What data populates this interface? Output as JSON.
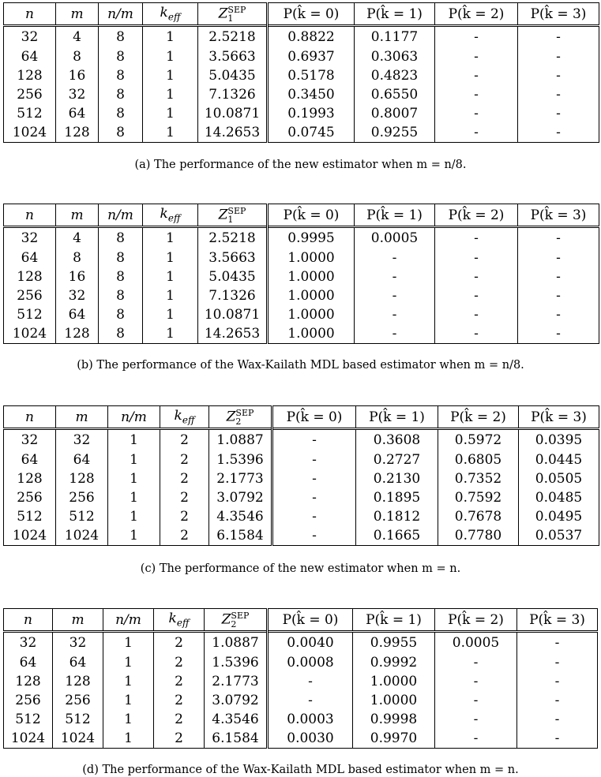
{
  "headers": [
    "n",
    "m",
    "n/m",
    "k_eff",
    "Z_SEP",
    "P(k=0)",
    "P(k=1)",
    "P(k=2)",
    "P(k=3)"
  ],
  "header_display": {
    "n": "n",
    "m": "m",
    "nm": "n/m",
    "keff": "k",
    "keff_sub": "eff",
    "z": "Z",
    "z_sup": "SEP",
    "p0": "P(k̂ = 0)",
    "p1": "P(k̂ = 1)",
    "p2": "P(k̂ = 2)",
    "p3": "P(k̂ = 3)"
  },
  "tables": [
    {
      "z_sub": "1",
      "caption": "(a)  The performance of the new estimator when m = n/8.",
      "rows": [
        [
          "32",
          "4",
          "8",
          "1",
          "2.5218",
          "0.8822",
          "0.1177",
          "-",
          "-"
        ],
        [
          "64",
          "8",
          "8",
          "1",
          "3.5663",
          "0.6937",
          "0.3063",
          "-",
          "-"
        ],
        [
          "128",
          "16",
          "8",
          "1",
          "5.0435",
          "0.5178",
          "0.4823",
          "-",
          "-"
        ],
        [
          "256",
          "32",
          "8",
          "1",
          "7.1326",
          "0.3450",
          "0.6550",
          "-",
          "-"
        ],
        [
          "512",
          "64",
          "8",
          "1",
          "10.0871",
          "0.1993",
          "0.8007",
          "-",
          "-"
        ],
        [
          "1024",
          "128",
          "8",
          "1",
          "14.2653",
          "0.0745",
          "0.9255",
          "-",
          "-"
        ]
      ]
    },
    {
      "z_sub": "1",
      "caption": "(b)  The performance of the Wax-Kailath MDL based estimator when m = n/8.",
      "rows": [
        [
          "32",
          "4",
          "8",
          "1",
          "2.5218",
          "0.9995",
          "0.0005",
          "-",
          "-"
        ],
        [
          "64",
          "8",
          "8",
          "1",
          "3.5663",
          "1.0000",
          "-",
          "-",
          "-"
        ],
        [
          "128",
          "16",
          "8",
          "1",
          "5.0435",
          "1.0000",
          "-",
          "-",
          "-"
        ],
        [
          "256",
          "32",
          "8",
          "1",
          "7.1326",
          "1.0000",
          "-",
          "-",
          "-"
        ],
        [
          "512",
          "64",
          "8",
          "1",
          "10.0871",
          "1.0000",
          "-",
          "-",
          "-"
        ],
        [
          "1024",
          "128",
          "8",
          "1",
          "14.2653",
          "1.0000",
          "-",
          "-",
          "-"
        ]
      ]
    },
    {
      "z_sub": "2",
      "caption": "(c)  The performance of the new estimator when m = n.",
      "rows": [
        [
          "32",
          "32",
          "1",
          "2",
          "1.0887",
          "-",
          "0.3608",
          "0.5972",
          "0.0395"
        ],
        [
          "64",
          "64",
          "1",
          "2",
          "1.5396",
          "-",
          "0.2727",
          "0.6805",
          "0.0445"
        ],
        [
          "128",
          "128",
          "1",
          "2",
          "2.1773",
          "-",
          "0.2130",
          "0.7352",
          "0.0505"
        ],
        [
          "256",
          "256",
          "1",
          "2",
          "3.0792",
          "-",
          "0.1895",
          "0.7592",
          "0.0485"
        ],
        [
          "512",
          "512",
          "1",
          "2",
          "4.3546",
          "-",
          "0.1812",
          "0.7678",
          "0.0495"
        ],
        [
          "1024",
          "1024",
          "1",
          "2",
          "6.1584",
          "-",
          "0.1665",
          "0.7780",
          "0.0537"
        ]
      ]
    },
    {
      "z_sub": "2",
      "caption": "(d)  The performance of the Wax-Kailath MDL based estimator when m = n.",
      "rows": [
        [
          "32",
          "32",
          "1",
          "2",
          "1.0887",
          "0.0040",
          "0.9955",
          "0.0005",
          "-"
        ],
        [
          "64",
          "64",
          "1",
          "2",
          "1.5396",
          "0.0008",
          "0.9992",
          "-",
          "-"
        ],
        [
          "128",
          "128",
          "1",
          "2",
          "2.1773",
          "-",
          "1.0000",
          "-",
          "-"
        ],
        [
          "256",
          "256",
          "1",
          "2",
          "3.0792",
          "-",
          "1.0000",
          "-",
          "-"
        ],
        [
          "512",
          "512",
          "1",
          "2",
          "4.3546",
          "0.0003",
          "0.9998",
          "-",
          "-"
        ],
        [
          "1024",
          "1024",
          "1",
          "2",
          "6.1584",
          "0.0030",
          "0.9970",
          "-",
          "-"
        ]
      ]
    }
  ]
}
